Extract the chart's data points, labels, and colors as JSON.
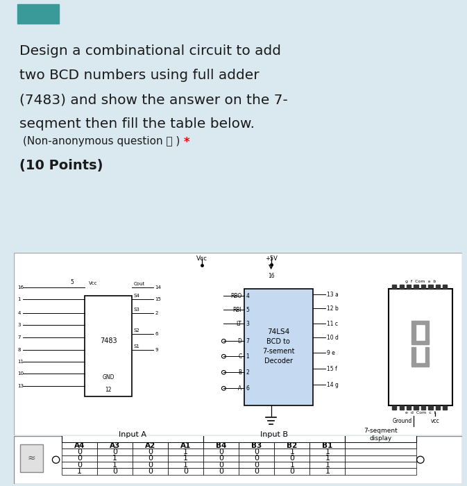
{
  "bg_color": "#dae8f0",
  "white_bg": "#ffffff",
  "title_line1": "Design a combinational circuit to add",
  "title_line2": "two BCD numbers using full adder",
  "title_line3": "(7483) and show the answer on the 7-",
  "title_line4": "seqment then fill the table below.",
  "subtitle_text": "(Non-anonymous question ⓘ )",
  "asterisk_text": "*",
  "points_text": "(10 Points)",
  "table_header1": "Input A",
  "table_header2": "Input B",
  "table_header3": "7-seqment\ndisplay",
  "table_col_headers": [
    "A4",
    "A3",
    "A2",
    "A1",
    "B4",
    "B3",
    "B2",
    "B1"
  ],
  "table_rows": [
    [
      0,
      0,
      0,
      1,
      0,
      0,
      1,
      1
    ],
    [
      0,
      1,
      0,
      1,
      0,
      0,
      0,
      1
    ],
    [
      0,
      1,
      0,
      1,
      0,
      0,
      1,
      1
    ],
    [
      1,
      0,
      0,
      0,
      0,
      0,
      0,
      1
    ]
  ],
  "chip_color": "#c5d9f1",
  "teal_color": "#3a9a9a"
}
